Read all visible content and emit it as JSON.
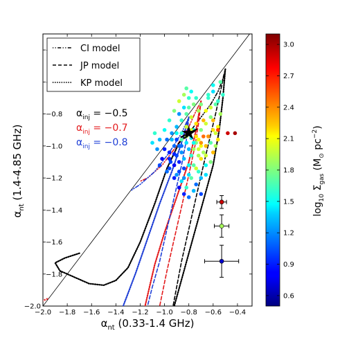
{
  "chart_data": {
    "type": "scatter",
    "xlabel_sym": "α",
    "xlabel_sub": "nt",
    "xlabel_rest": " (0.33-1.4 GHz)",
    "ylabel_sym": "α",
    "ylabel_sub": "nt",
    "ylabel_rest": " (1.4-4.85 GHz)",
    "xlim": [
      -2.0,
      -0.28
    ],
    "ylim": [
      -2.0,
      -0.3
    ],
    "xticks": [
      -2.0,
      -1.8,
      -1.6,
      -1.4,
      -1.2,
      -1.0,
      -0.8,
      -0.6,
      -0.4
    ],
    "xtick_labels": [
      "−2.0",
      "−1.8",
      "−1.6",
      "−1.4",
      "−1.2",
      "−1.0",
      "−0.8",
      "−0.6",
      "−0.4"
    ],
    "yticks": [
      -2.0,
      -1.8,
      -1.6,
      -1.4,
      -1.2,
      -1.0,
      -0.8,
      -0.6,
      -0.4
    ],
    "ytick_labels": [
      "−2.0",
      "−1.8",
      "−1.6",
      "−1.4",
      "−1.2",
      "−1.0",
      "−0.8",
      "−0.6",
      "−0.4"
    ],
    "legend": {
      "position": "top-left",
      "entries": [
        {
          "label": "CI model",
          "style": "dashdot"
        },
        {
          "label": "JP model",
          "style": "dashed"
        },
        {
          "label": "KP model",
          "style": "dotted"
        }
      ]
    },
    "injection_labels": [
      {
        "prefix": "α",
        "sub": "inj",
        "value": " = −0.5",
        "color": "#000000"
      },
      {
        "prefix": "α",
        "sub": "inj",
        "value": " = −0.7",
        "color": "#e31a1c"
      },
      {
        "prefix": "α",
        "sub": "inj",
        "value": " = −0.8",
        "color": "#1f3fd6"
      }
    ],
    "colorbar": {
      "label_prefix": "log",
      "label_sub": "10",
      "label_sym": " Σ",
      "label_sym_sub": "gas",
      "label_unit": " (M",
      "label_unit_sub": "⊙",
      "label_unit_rest": " pc",
      "label_unit_sup": "−2",
      "label_close": ")",
      "range": [
        0.5,
        3.1
      ],
      "ticks": [
        0.6,
        0.9,
        1.2,
        1.5,
        1.8,
        2.1,
        2.4,
        2.7,
        3.0
      ],
      "tick_labels": [
        "0.6",
        "0.9",
        "1.2",
        "1.5",
        "1.8",
        "2.1",
        "2.4",
        "2.7",
        "3.0"
      ],
      "colormap": "jet"
    },
    "identity_line": {
      "from": [
        -2.0,
        -2.0
      ],
      "to": [
        -0.3,
        -0.3
      ]
    },
    "model_tracks": [
      {
        "model": "CI",
        "alpha_inj": -0.5,
        "color": "#000000",
        "style": "dashdot",
        "points": [
          [
            -0.5,
            -0.52
          ],
          [
            -0.52,
            -0.58
          ],
          [
            -0.56,
            -0.66
          ],
          [
            -0.62,
            -0.74
          ],
          [
            -0.7,
            -0.82
          ],
          [
            -0.76,
            -0.88
          ],
          [
            -0.8,
            -0.92
          ]
        ]
      },
      {
        "model": "JP",
        "alpha_inj": -0.5,
        "color": "#000000",
        "style": "dashed",
        "points": [
          [
            -0.5,
            -0.52
          ],
          [
            -0.54,
            -0.66
          ],
          [
            -0.58,
            -0.8
          ],
          [
            -0.63,
            -0.96
          ],
          [
            -0.68,
            -1.12
          ],
          [
            -0.74,
            -1.32
          ],
          [
            -0.8,
            -1.52
          ],
          [
            -0.86,
            -1.72
          ],
          [
            -0.93,
            -2.0
          ]
        ]
      },
      {
        "model": "KP",
        "alpha_inj": -0.5,
        "color": "#000000",
        "style": "dotted",
        "points": [
          [
            -0.5,
            -0.52
          ],
          [
            -0.52,
            -0.7
          ],
          [
            -0.55,
            -0.9
          ],
          [
            -0.6,
            -1.12
          ],
          [
            -0.68,
            -1.34
          ],
          [
            -0.76,
            -1.56
          ],
          [
            -0.84,
            -1.78
          ],
          [
            -0.92,
            -2.0
          ]
        ]
      },
      {
        "model": "CI",
        "alpha_inj": -0.7,
        "color": "#e31a1c",
        "style": "dashdot",
        "points": [
          [
            -0.7,
            -0.72
          ],
          [
            -0.74,
            -0.78
          ],
          [
            -0.8,
            -0.88
          ],
          [
            -0.9,
            -1.0
          ],
          [
            -1.02,
            -1.12
          ],
          [
            -1.14,
            -1.2
          ],
          [
            -1.2,
            -1.22
          ]
        ]
      },
      {
        "model": "JP",
        "alpha_inj": -0.7,
        "color": "#e31a1c",
        "style": "dashed",
        "points": [
          [
            -0.7,
            -0.72
          ],
          [
            -0.72,
            -0.86
          ],
          [
            -0.75,
            -1.0
          ],
          [
            -0.8,
            -1.18
          ],
          [
            -0.86,
            -1.38
          ],
          [
            -0.92,
            -1.58
          ],
          [
            -0.98,
            -1.78
          ],
          [
            -1.04,
            -2.0
          ]
        ]
      },
      {
        "model": "KP",
        "alpha_inj": -0.7,
        "color": "#e31a1c",
        "style": "dotted",
        "points": [
          [
            -0.7,
            -0.72
          ],
          [
            -0.74,
            -0.9
          ],
          [
            -0.8,
            -1.1
          ],
          [
            -0.9,
            -1.32
          ],
          [
            -1.0,
            -1.54
          ],
          [
            -1.08,
            -1.74
          ],
          [
            -1.16,
            -2.0
          ]
        ]
      },
      {
        "model": "CI",
        "alpha_inj": -0.8,
        "color": "#1f3fd6",
        "style": "dashdot",
        "points": [
          [
            -0.8,
            -0.82
          ],
          [
            -0.86,
            -0.92
          ],
          [
            -0.96,
            -1.04
          ],
          [
            -1.08,
            -1.16
          ],
          [
            -1.2,
            -1.24
          ],
          [
            -1.28,
            -1.28
          ]
        ]
      },
      {
        "model": "JP",
        "alpha_inj": -0.8,
        "color": "#1f3fd6",
        "style": "dashed",
        "points": [
          [
            -0.8,
            -0.82
          ],
          [
            -0.82,
            -0.96
          ],
          [
            -0.86,
            -1.12
          ],
          [
            -0.92,
            -1.32
          ],
          [
            -0.98,
            -1.52
          ],
          [
            -1.04,
            -1.72
          ],
          [
            -1.1,
            -1.88
          ],
          [
            -1.14,
            -2.0
          ]
        ]
      },
      {
        "model": "KP",
        "alpha_inj": -0.8,
        "color": "#1f3fd6",
        "style": "dotted",
        "points": [
          [
            -0.8,
            -0.82
          ],
          [
            -0.86,
            -0.98
          ],
          [
            -0.94,
            -1.16
          ],
          [
            -1.04,
            -1.36
          ],
          [
            -1.14,
            -1.58
          ],
          [
            -1.24,
            -1.8
          ],
          [
            -1.34,
            -2.0
          ]
        ]
      },
      {
        "model": "loop",
        "alpha_inj": -0.5,
        "color": "#000000",
        "style": "dotted",
        "points": [
          [
            -1.7,
            -1.67
          ],
          [
            -1.82,
            -1.7
          ],
          [
            -1.9,
            -1.73
          ],
          [
            -1.86,
            -1.78
          ],
          [
            -1.74,
            -1.82
          ],
          [
            -1.62,
            -1.86
          ],
          [
            -1.5,
            -1.87
          ],
          [
            -1.4,
            -1.84
          ],
          [
            -1.3,
            -1.76
          ],
          [
            -1.2,
            -1.6
          ],
          [
            -1.08,
            -1.36
          ],
          [
            -0.98,
            -1.14
          ],
          [
            -0.88,
            -0.98
          ],
          [
            -0.8,
            -0.92
          ]
        ]
      }
    ],
    "data_points": [
      [
        -0.86,
        -0.92,
        1.6
      ],
      [
        -0.82,
        -0.88,
        2.0
      ],
      [
        -0.78,
        -0.95,
        1.4
      ],
      [
        -0.88,
        -1.0,
        1.1
      ],
      [
        -0.92,
        -1.05,
        0.9
      ],
      [
        -0.95,
        -1.1,
        1.0
      ],
      [
        -0.84,
        -1.08,
        1.3
      ],
      [
        -0.8,
        -1.12,
        1.5
      ],
      [
        -0.76,
        -1.02,
        1.9
      ],
      [
        -0.72,
        -0.96,
        2.1
      ],
      [
        -0.7,
        -0.9,
        1.8
      ],
      [
        -0.74,
        -0.86,
        2.2
      ],
      [
        -0.78,
        -0.82,
        2.0
      ],
      [
        -0.82,
        -0.8,
        1.7
      ],
      [
        -0.86,
        -0.84,
        1.6
      ],
      [
        -0.9,
        -0.88,
        1.3
      ],
      [
        -0.94,
        -0.92,
        1.2
      ],
      [
        -0.98,
        -0.96,
        1.1
      ],
      [
        -1.0,
        -1.02,
        0.9
      ],
      [
        -1.02,
        -1.08,
        0.8
      ],
      [
        -0.96,
        -1.14,
        1.0
      ],
      [
        -0.9,
        -1.18,
        1.2
      ],
      [
        -0.86,
        -1.22,
        1.4
      ],
      [
        -0.82,
        -1.26,
        1.6
      ],
      [
        -0.78,
        -1.2,
        1.7
      ],
      [
        -0.74,
        -1.14,
        2.0
      ],
      [
        -0.7,
        -1.08,
        2.2
      ],
      [
        -0.66,
        -1.0,
        2.3
      ],
      [
        -0.68,
        -0.94,
        2.5
      ],
      [
        -0.72,
        -0.78,
        1.9
      ],
      [
        -0.76,
        -0.74,
        1.8
      ],
      [
        -0.8,
        -0.7,
        1.6
      ],
      [
        -0.84,
        -0.76,
        1.4
      ],
      [
        -0.88,
        -0.8,
        1.2
      ],
      [
        -0.6,
        -0.62,
        1.5
      ],
      [
        -0.64,
        -0.68,
        1.6
      ],
      [
        -0.58,
        -0.74,
        1.7
      ],
      [
        -0.62,
        -0.82,
        1.8
      ],
      [
        -0.66,
        -0.86,
        2.0
      ],
      [
        -0.6,
        -0.9,
        2.2
      ],
      [
        -0.64,
        -0.94,
        2.4
      ],
      [
        -0.68,
        -1.04,
        1.9
      ],
      [
        -0.72,
        -1.16,
        1.6
      ],
      [
        -0.76,
        -1.28,
        1.3
      ],
      [
        -0.8,
        -1.32,
        1.1
      ],
      [
        -0.84,
        -1.3,
        0.9
      ],
      [
        -0.88,
        -1.26,
        0.8
      ],
      [
        -0.92,
        -1.2,
        0.9
      ],
      [
        -0.98,
        -1.16,
        1.1
      ],
      [
        -1.04,
        -1.12,
        1.0
      ],
      [
        -1.06,
        -1.02,
        1.2
      ],
      [
        -1.04,
        -0.96,
        1.3
      ],
      [
        -1.0,
        -0.9,
        1.5
      ],
      [
        -0.96,
        -0.84,
        1.6
      ],
      [
        -0.92,
        -0.78,
        1.8
      ],
      [
        -0.88,
        -0.72,
        2.0
      ],
      [
        -0.84,
        -0.68,
        1.9
      ],
      [
        -0.8,
        -0.76,
        1.7
      ],
      [
        -0.76,
        -0.9,
        1.5
      ],
      [
        -0.74,
        -0.98,
        1.8
      ],
      [
        -0.7,
        -1.0,
        2.1
      ],
      [
        -0.66,
        -1.06,
        2.0
      ],
      [
        -0.62,
        -1.1,
        1.8
      ],
      [
        -0.58,
        -1.0,
        1.9
      ],
      [
        -0.56,
        -0.88,
        2.1
      ],
      [
        -0.54,
        -0.8,
        1.9
      ],
      [
        -0.56,
        -0.72,
        1.6
      ],
      [
        -0.6,
        -0.66,
        1.4
      ],
      [
        -0.9,
        -0.96,
        1.0
      ],
      [
        -0.86,
        -1.04,
        1.2
      ],
      [
        -0.82,
        -0.98,
        1.4
      ],
      [
        -0.78,
        -1.06,
        1.6
      ],
      [
        -0.84,
        -1.14,
        1.0
      ],
      [
        -0.88,
        -1.1,
        0.9
      ],
      [
        -0.92,
        -1.0,
        1.1
      ],
      [
        -0.96,
        -1.04,
        0.9
      ],
      [
        -0.94,
        -0.96,
        1.3
      ],
      [
        -0.9,
        -0.92,
        1.5
      ],
      [
        -0.86,
        -0.96,
        1.7
      ],
      [
        -0.82,
        -0.94,
        1.9
      ],
      [
        -0.78,
        -0.9,
        2.0
      ],
      [
        -0.74,
        -0.94,
        2.2
      ],
      [
        -0.7,
        -0.98,
        2.4
      ],
      [
        -0.72,
        -1.06,
        1.9
      ],
      [
        -0.76,
        -1.12,
        1.7
      ],
      [
        -0.8,
        -1.18,
        1.4
      ],
      [
        -0.84,
        -1.2,
        1.2
      ],
      [
        -0.88,
        -1.16,
        1.0
      ],
      [
        -0.92,
        -1.12,
        0.8
      ],
      [
        -0.96,
        -1.08,
        0.9
      ],
      [
        -0.68,
        -0.84,
        2.3
      ],
      [
        -0.66,
        -0.78,
        2.1
      ],
      [
        -0.7,
        -0.74,
        1.8
      ],
      [
        -0.74,
        -0.7,
        1.6
      ],
      [
        -0.78,
        -0.66,
        1.5
      ],
      [
        -0.82,
        -0.64,
        1.7
      ],
      [
        -0.62,
        -0.76,
        2.0
      ],
      [
        -0.6,
        -0.84,
        2.3
      ],
      [
        -0.58,
        -0.92,
        2.0
      ],
      [
        -0.62,
        -0.98,
        1.7
      ],
      [
        -0.66,
        -1.12,
        1.5
      ],
      [
        -0.7,
        -1.2,
        1.3
      ],
      [
        -0.74,
        -1.24,
        1.1
      ],
      [
        -0.7,
        -1.3,
        1.0
      ],
      [
        -0.66,
        -1.18,
        1.4
      ],
      [
        -1.1,
        -0.98,
        1.4
      ],
      [
        -1.08,
        -0.92,
        1.6
      ],
      [
        -0.6,
        -1.04,
        2.3
      ],
      [
        -0.56,
        -0.96,
        2.2
      ],
      [
        -0.64,
        -0.7,
        1.6
      ],
      [
        -0.52,
        -0.68,
        1.6
      ],
      [
        -0.54,
        -0.6,
        1.7
      ],
      [
        -0.48,
        -0.92,
        2.9
      ],
      [
        -0.42,
        -0.92,
        3.0
      ],
      [
        -0.56,
        -0.9,
        2.6
      ],
      [
        -0.9,
        -1.06,
        1.0
      ],
      [
        -0.86,
        -1.0,
        1.1
      ],
      [
        -0.8,
        -1.02,
        1.3
      ],
      [
        -0.76,
        -0.98,
        1.5
      ],
      [
        -0.72,
        -1.02,
        2.0
      ]
    ],
    "error_bars": [
      {
        "x": -0.53,
        "y": -1.35,
        "xerr": 0.04,
        "yerr": 0.04,
        "value": 2.9
      },
      {
        "x": -0.53,
        "y": -1.5,
        "xerr": 0.06,
        "yerr": 0.07,
        "value": 1.9
      },
      {
        "x": -0.53,
        "y": -1.72,
        "xerr": 0.14,
        "yerr": 0.1,
        "value": 0.7
      }
    ],
    "star_marker": {
      "x": -0.8,
      "y": -0.92
    },
    "red_corner_marker": {
      "x": -1.98,
      "y": -1.96
    }
  }
}
